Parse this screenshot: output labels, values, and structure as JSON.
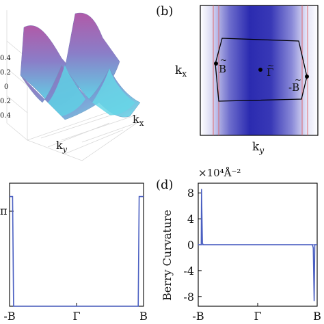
{
  "panel_a": {
    "ytick_labels": [
      "0.4",
      "0.2",
      "0",
      "0.2",
      "0.4"
    ],
    "xlabel": "k",
    "xlabel_sub": "y",
    "ylabel": "k",
    "ylabel_sub": "x",
    "colors": {
      "peak": "#b05aa8",
      "mid": "#6d86c8",
      "low": "#5fd8e8"
    }
  },
  "panel_b": {
    "panel_label": "(b)",
    "ylabel": "k",
    "ylabel_sub": "x",
    "xlabel": "k",
    "xlabel_sub": "y",
    "point_B": "B",
    "point_Gamma": "Γ",
    "point_negB": "-B",
    "tilde": "~",
    "colors": {
      "dark": "#2b2bb0",
      "light": "#ffffff",
      "frame": "#000000",
      "red_lines": "#e06060"
    }
  },
  "panel_c": {
    "ytick_pi": "π",
    "xtick_labels": [
      "-B",
      "Γ",
      "B"
    ],
    "line_color": "#4a5fc1"
  },
  "panel_d": {
    "panel_label": "(d)",
    "scale_label": "×10⁴Å⁻²",
    "ylabel": "Berry Curvature",
    "ytick_labels": [
      "8",
      "4",
      "0",
      "-4",
      "-8"
    ],
    "xtick_labels": [
      "-B",
      "Γ",
      "B"
    ],
    "line_color": "#4a5fc1"
  },
  "chart_data": [
    {
      "type": "line",
      "panel": "c",
      "x_categories": [
        "-B",
        "Γ",
        "B"
      ],
      "x": [
        -1.0,
        -0.97,
        -0.955,
        -0.94,
        0.92,
        0.935,
        0.95,
        1.0
      ],
      "y": [
        3.1416,
        3.1416,
        3.1416,
        -0.6,
        -0.6,
        3.1416,
        3.1416,
        3.1416
      ],
      "ylabel": "",
      "xlim": [
        -1,
        1
      ],
      "ylim": [
        -0.6,
        3.6
      ]
    },
    {
      "type": "line",
      "panel": "d",
      "x_categories": [
        "-B",
        "Γ",
        "B"
      ],
      "x": [
        -1.0,
        -0.95,
        -0.945,
        -0.93,
        -0.915,
        -0.9,
        0.9,
        0.92,
        0.935,
        0.95,
        0.96,
        1.0
      ],
      "y": [
        0,
        0,
        8.6,
        0.2,
        0,
        0,
        0,
        0,
        -0.5,
        -8.7,
        0,
        0
      ],
      "ylabel": "Berry Curvature",
      "xlim": [
        -1,
        1
      ],
      "ylim": [
        -9.5,
        9.5
      ],
      "yticks": [
        8,
        4,
        0,
        -4,
        -8
      ]
    }
  ]
}
